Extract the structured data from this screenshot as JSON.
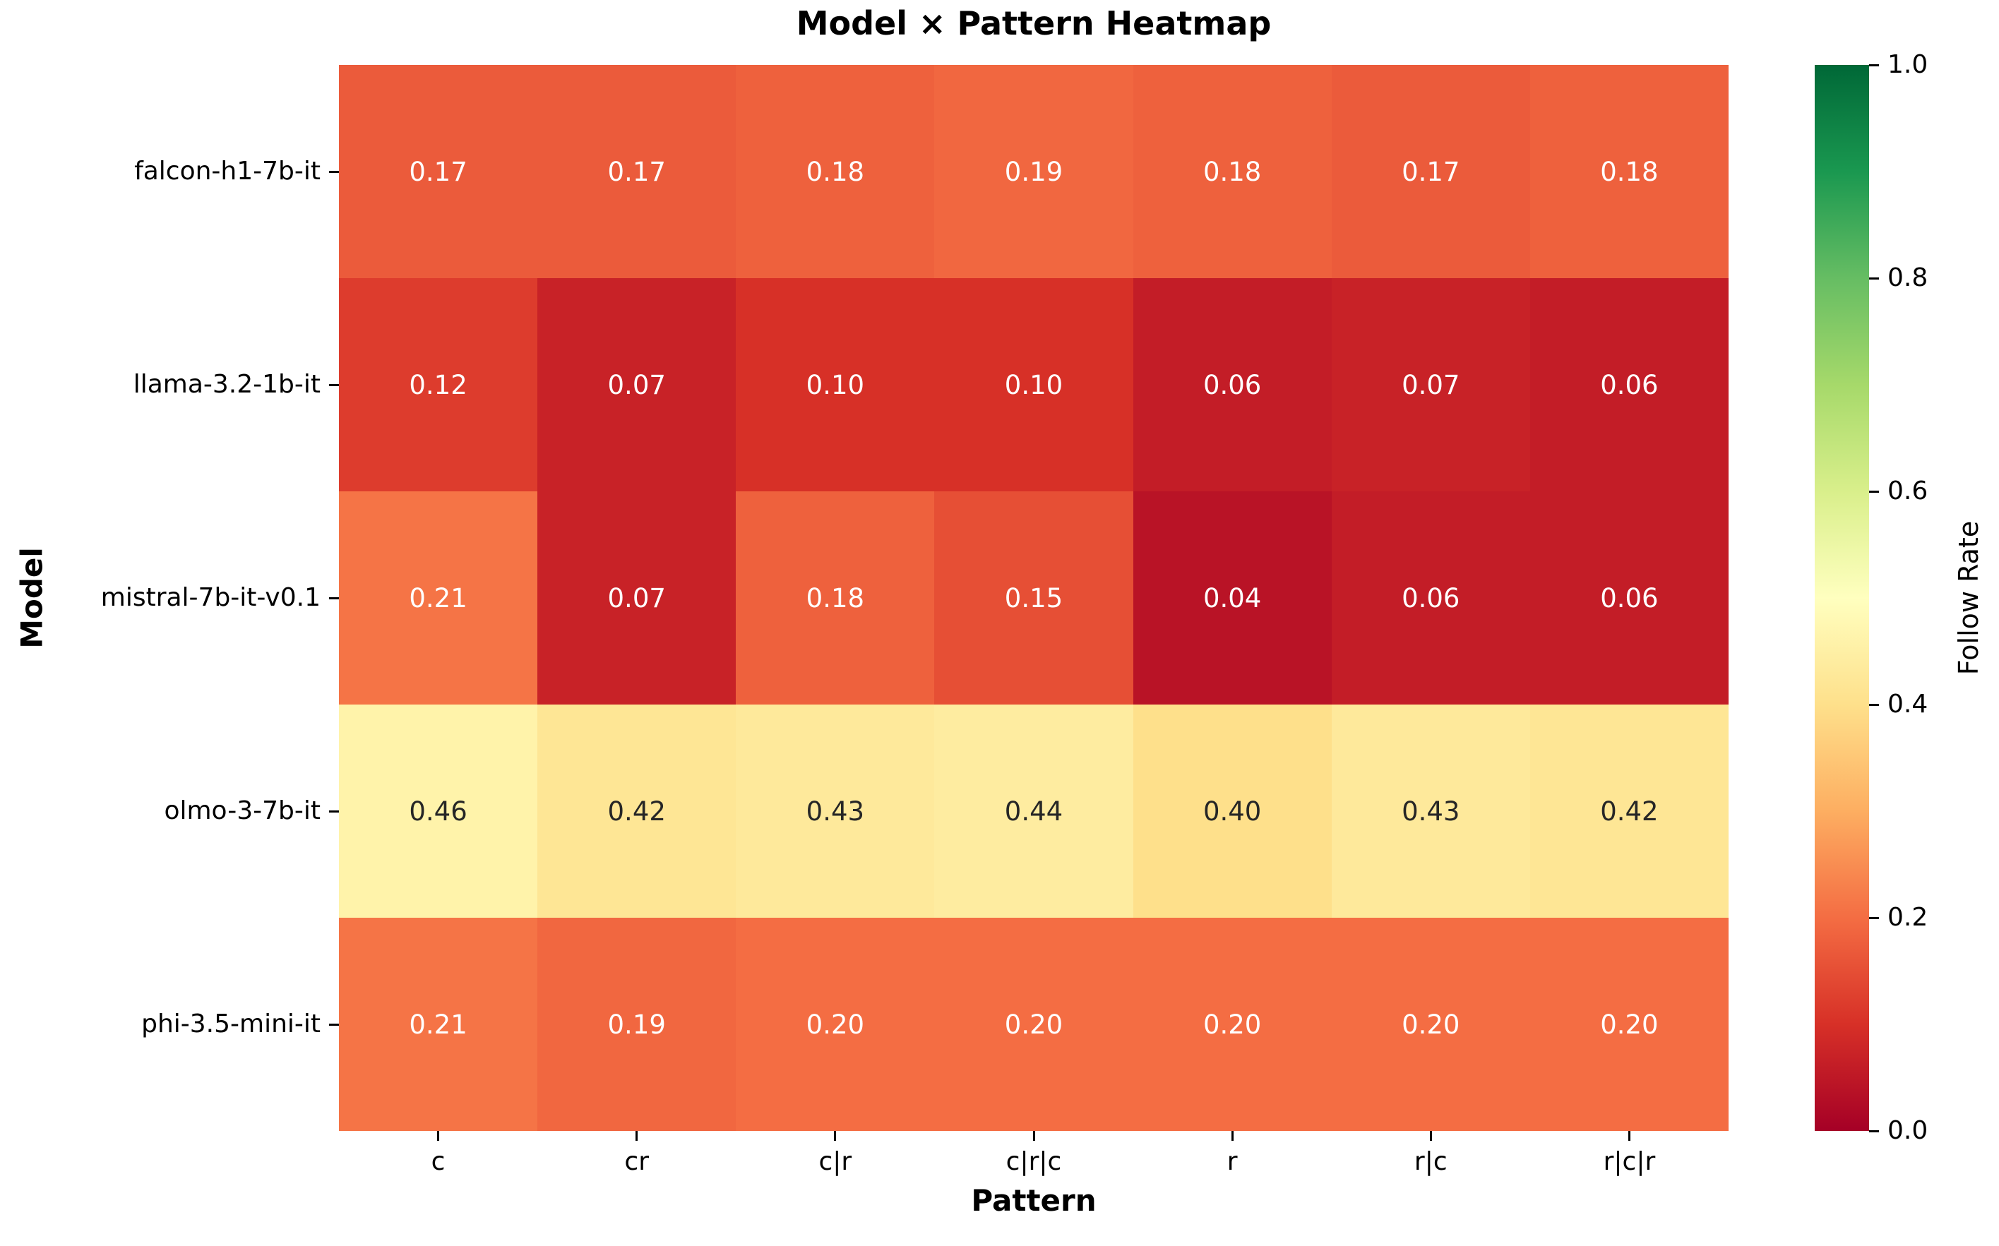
{
  "chart_data": {
    "type": "heatmap",
    "title": "Model × Pattern Heatmap",
    "xlabel": "Pattern",
    "ylabel": "Model",
    "colorbar_label": "Follow Rate",
    "x_categories": [
      "c",
      "cr",
      "c|r",
      "c|r|c",
      "r",
      "r|c",
      "r|c|r"
    ],
    "y_categories": [
      "falcon-h1-7b-it",
      "llama-3.2-1b-it",
      "mistral-7b-it-v0.1",
      "olmo-3-7b-it",
      "phi-3.5-mini-it"
    ],
    "series": [
      {
        "name": "falcon-h1-7b-it",
        "values": [
          0.17,
          0.17,
          0.18,
          0.19,
          0.18,
          0.17,
          0.18
        ]
      },
      {
        "name": "llama-3.2-1b-it",
        "values": [
          0.12,
          0.07,
          0.1,
          0.1,
          0.06,
          0.07,
          0.06
        ]
      },
      {
        "name": "mistral-7b-it-v0.1",
        "values": [
          0.21,
          0.07,
          0.18,
          0.15,
          0.04,
          0.06,
          0.06
        ]
      },
      {
        "name": "olmo-3-7b-it",
        "values": [
          0.46,
          0.42,
          0.43,
          0.44,
          0.4,
          0.43,
          0.42
        ]
      },
      {
        "name": "phi-3.5-mini-it",
        "values": [
          0.21,
          0.19,
          0.2,
          0.2,
          0.2,
          0.2,
          0.2
        ]
      }
    ],
    "vmin": 0.0,
    "vmax": 1.0,
    "colorbar_ticks": [
      "1.0",
      "0.8",
      "0.6",
      "0.4",
      "0.2",
      "0.0"
    ],
    "colormap": "RdYlGn",
    "colormap_anchors": [
      "#a50026",
      "#d73027",
      "#f46d43",
      "#fdae61",
      "#fee08b",
      "#ffffbf",
      "#d9ef8b",
      "#a6d96a",
      "#66bd63",
      "#1a9850",
      "#006837"
    ],
    "annotation_color_light": "#ffffff",
    "annotation_color_dark": "#262626",
    "grid": "off",
    "legend_position": "right-colorbar",
    "value_decimals": 2
  }
}
